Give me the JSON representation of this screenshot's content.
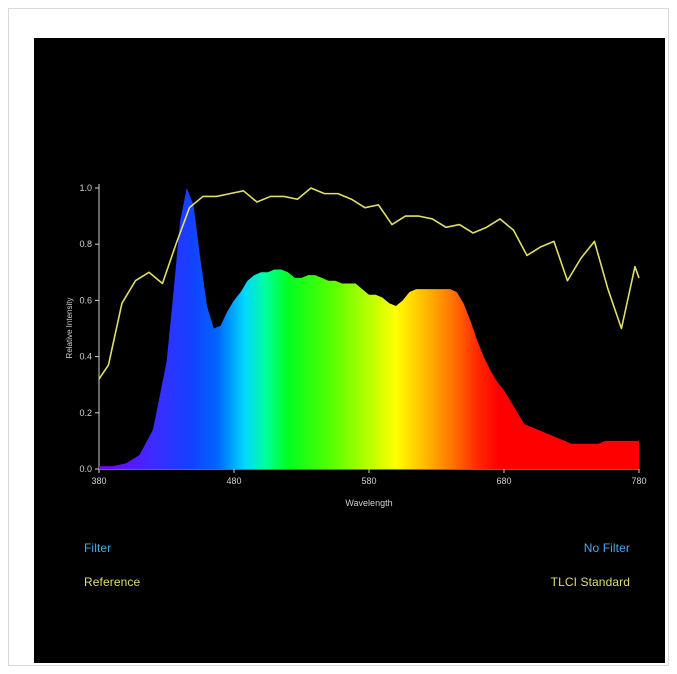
{
  "chart_data": {
    "type": "area",
    "xlabel": "Wavelength",
    "ylabel": "Relative Intensity",
    "xlim": [
      380,
      780
    ],
    "ylim": [
      0,
      1.0
    ],
    "x_ticks": [
      "380",
      "480",
      "580",
      "680",
      "780"
    ],
    "y_ticks": [
      "0.0",
      "0.2",
      "0.4",
      "0.6",
      "0.8",
      "1.0"
    ],
    "grid": false,
    "series": [
      {
        "name": "Filter",
        "style": "spectrum-filled-area",
        "x": [
          380,
          390,
          400,
          410,
          420,
          430,
          435,
          440,
          445,
          450,
          455,
          460,
          465,
          470,
          475,
          480,
          485,
          490,
          495,
          500,
          505,
          510,
          515,
          520,
          525,
          530,
          535,
          540,
          545,
          550,
          555,
          560,
          565,
          570,
          575,
          580,
          585,
          590,
          595,
          600,
          605,
          610,
          615,
          620,
          625,
          630,
          635,
          640,
          645,
          650,
          655,
          660,
          665,
          670,
          675,
          680,
          685,
          690,
          695,
          700,
          705,
          710,
          715,
          720,
          725,
          730,
          735,
          740,
          745,
          750,
          755,
          760,
          765,
          770,
          775,
          780
        ],
        "values": [
          0.01,
          0.01,
          0.02,
          0.05,
          0.14,
          0.38,
          0.62,
          0.88,
          1.0,
          0.94,
          0.75,
          0.58,
          0.5,
          0.51,
          0.56,
          0.6,
          0.63,
          0.67,
          0.69,
          0.7,
          0.7,
          0.71,
          0.71,
          0.7,
          0.68,
          0.68,
          0.69,
          0.69,
          0.68,
          0.67,
          0.67,
          0.66,
          0.66,
          0.66,
          0.64,
          0.62,
          0.62,
          0.61,
          0.59,
          0.58,
          0.6,
          0.63,
          0.64,
          0.64,
          0.64,
          0.64,
          0.64,
          0.64,
          0.63,
          0.59,
          0.53,
          0.46,
          0.4,
          0.35,
          0.31,
          0.28,
          0.24,
          0.2,
          0.16,
          0.15,
          0.14,
          0.13,
          0.12,
          0.11,
          0.1,
          0.09,
          0.09,
          0.09,
          0.09,
          0.09,
          0.1,
          0.1,
          0.1,
          0.1,
          0.1,
          0.1
        ]
      },
      {
        "name": "Reference",
        "style": "line",
        "color": "#e0de6a",
        "x": [
          380,
          387,
          397,
          407,
          417,
          427,
          437,
          447,
          457,
          467,
          477,
          487,
          497,
          507,
          517,
          527,
          537,
          547,
          557,
          567,
          577,
          587,
          597,
          607,
          617,
          627,
          637,
          647,
          657,
          667,
          677,
          687,
          697,
          707,
          717,
          727,
          737,
          747,
          757,
          767,
          777,
          780
        ],
        "values": [
          0.32,
          0.37,
          0.59,
          0.67,
          0.7,
          0.66,
          0.8,
          0.93,
          0.97,
          0.97,
          0.98,
          0.99,
          0.95,
          0.97,
          0.97,
          0.96,
          1.0,
          0.98,
          0.98,
          0.96,
          0.93,
          0.94,
          0.87,
          0.9,
          0.9,
          0.89,
          0.86,
          0.87,
          0.84,
          0.86,
          0.89,
          0.85,
          0.76,
          0.79,
          0.81,
          0.67,
          0.75,
          0.81,
          0.64,
          0.5,
          0.72,
          0.68
        ]
      }
    ]
  },
  "legend": {
    "filter_label": "Filter",
    "nofilter_label": "No Filter",
    "reference_label": "Reference",
    "tlci_label": "TLCI Standard"
  },
  "colors": {
    "panel_background": "#000000",
    "axis": "#d0d0d0",
    "text": "#d0d0d0",
    "filter_text": "#4aa8e8",
    "reference_line": "#e0de6a"
  }
}
